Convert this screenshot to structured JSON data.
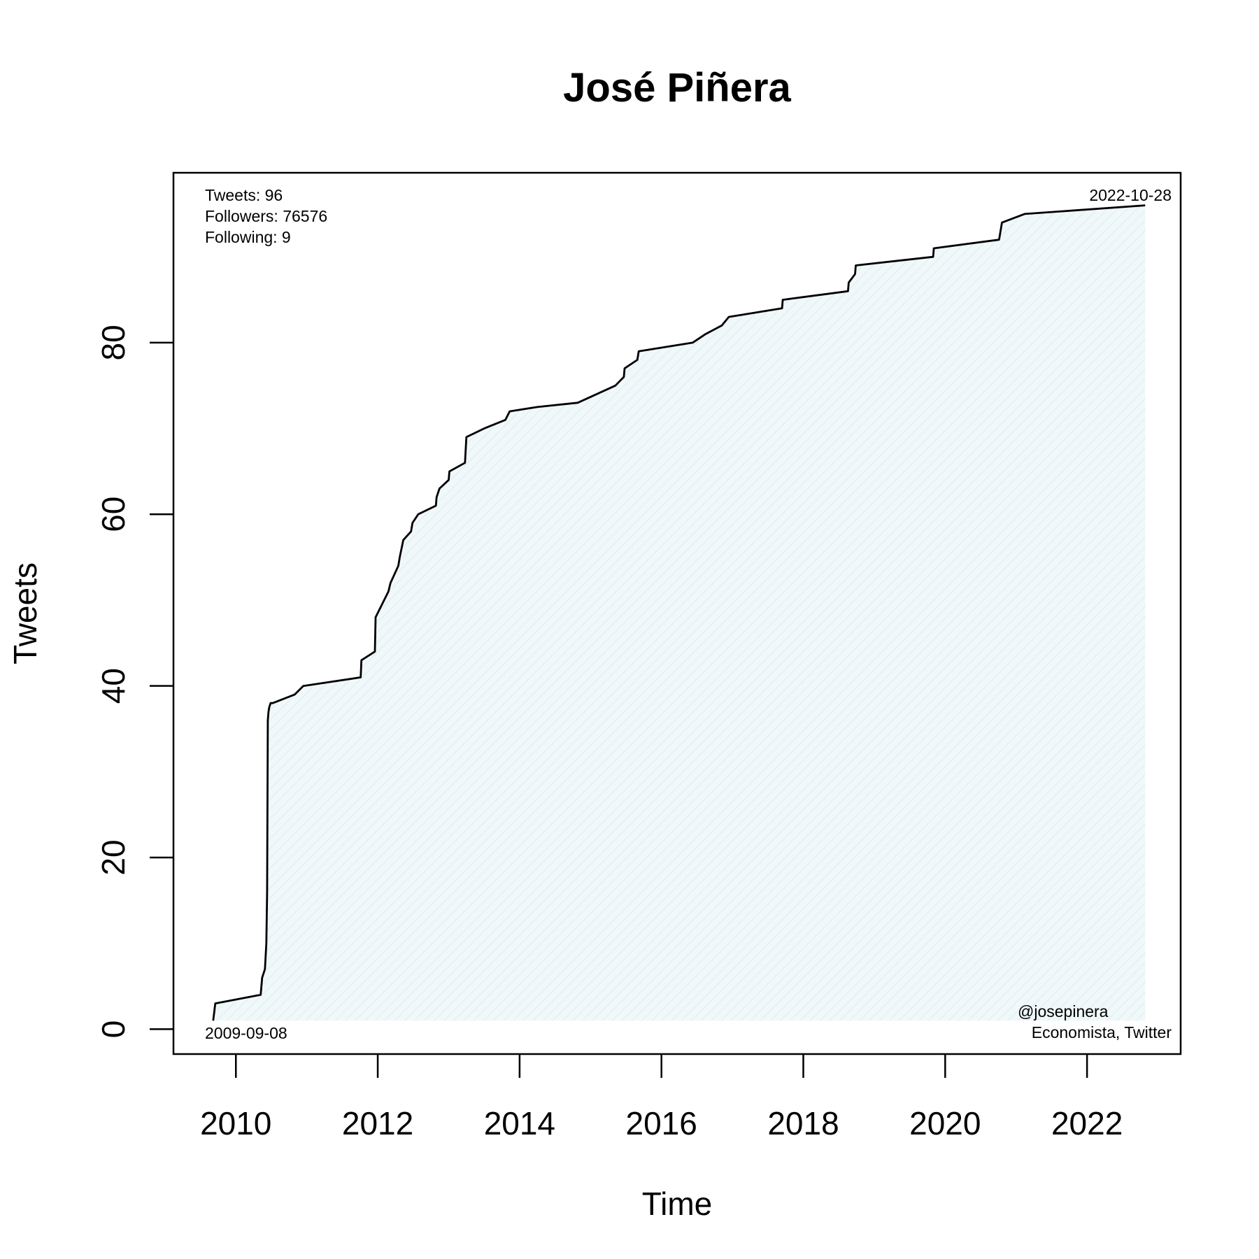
{
  "chart_data": {
    "type": "area",
    "title": "José Piñera",
    "xlabel": "Time",
    "ylabel": "Tweets",
    "xlim": [
      2009.12,
      2023.32
    ],
    "ylim": [
      -2.9,
      99.8
    ],
    "x_ticks": [
      2010,
      2012,
      2014,
      2016,
      2018,
      2020,
      2022
    ],
    "x_tick_labels": [
      "2010",
      "2012",
      "2014",
      "2016",
      "2018",
      "2020",
      "2022"
    ],
    "y_ticks": [
      0,
      20,
      40,
      60,
      80
    ],
    "y_tick_labels": [
      "0",
      "20",
      "40",
      "60",
      "80"
    ],
    "fill_color": "#eef7f9",
    "line_color": "#000000",
    "annotations": {
      "stats": [
        "Tweets: 96",
        "Followers: 76576",
        "Following: 9"
      ],
      "end_date": "2022-10-28",
      "start_date": "2009-09-08",
      "handle": "@josepinera",
      "description": "Economista, Twitter"
    },
    "series": [
      {
        "name": "Tweets",
        "x": [
          2009.68,
          2009.71,
          2010.35,
          2010.37,
          2010.41,
          2010.43,
          2010.44,
          2010.45,
          2010.46,
          2010.47,
          2010.49,
          2010.52,
          2010.83,
          2010.95,
          2011.76,
          2011.77,
          2011.96,
          2011.97,
          2012.03,
          2012.15,
          2012.18,
          2012.29,
          2012.31,
          2012.36,
          2012.47,
          2012.49,
          2012.57,
          2012.82,
          2012.83,
          2012.87,
          2013.0,
          2013.01,
          2013.23,
          2013.25,
          2013.5,
          2013.8,
          2013.86,
          2014.25,
          2014.82,
          2015.35,
          2015.47,
          2015.48,
          2015.66,
          2015.68,
          2016.44,
          2016.62,
          2016.85,
          2016.95,
          2017.7,
          2017.71,
          2018.63,
          2018.64,
          2018.73,
          2018.74,
          2019.83,
          2019.84,
          2020.76,
          2020.8,
          2021.12,
          2022.82
        ],
        "y": [
          1,
          3,
          4,
          6,
          7,
          10,
          16,
          36,
          37,
          37.5,
          38,
          38,
          39,
          40,
          41,
          43,
          44,
          48,
          49,
          51,
          52,
          54,
          55,
          57,
          58,
          59,
          60,
          61,
          62,
          63,
          64,
          65,
          66,
          69,
          70,
          71,
          72,
          72.5,
          73,
          75,
          76,
          77,
          78,
          79,
          80,
          81,
          82,
          83,
          84,
          85,
          86,
          87,
          88,
          89,
          90,
          91,
          92,
          94,
          95,
          96
        ]
      }
    ]
  }
}
